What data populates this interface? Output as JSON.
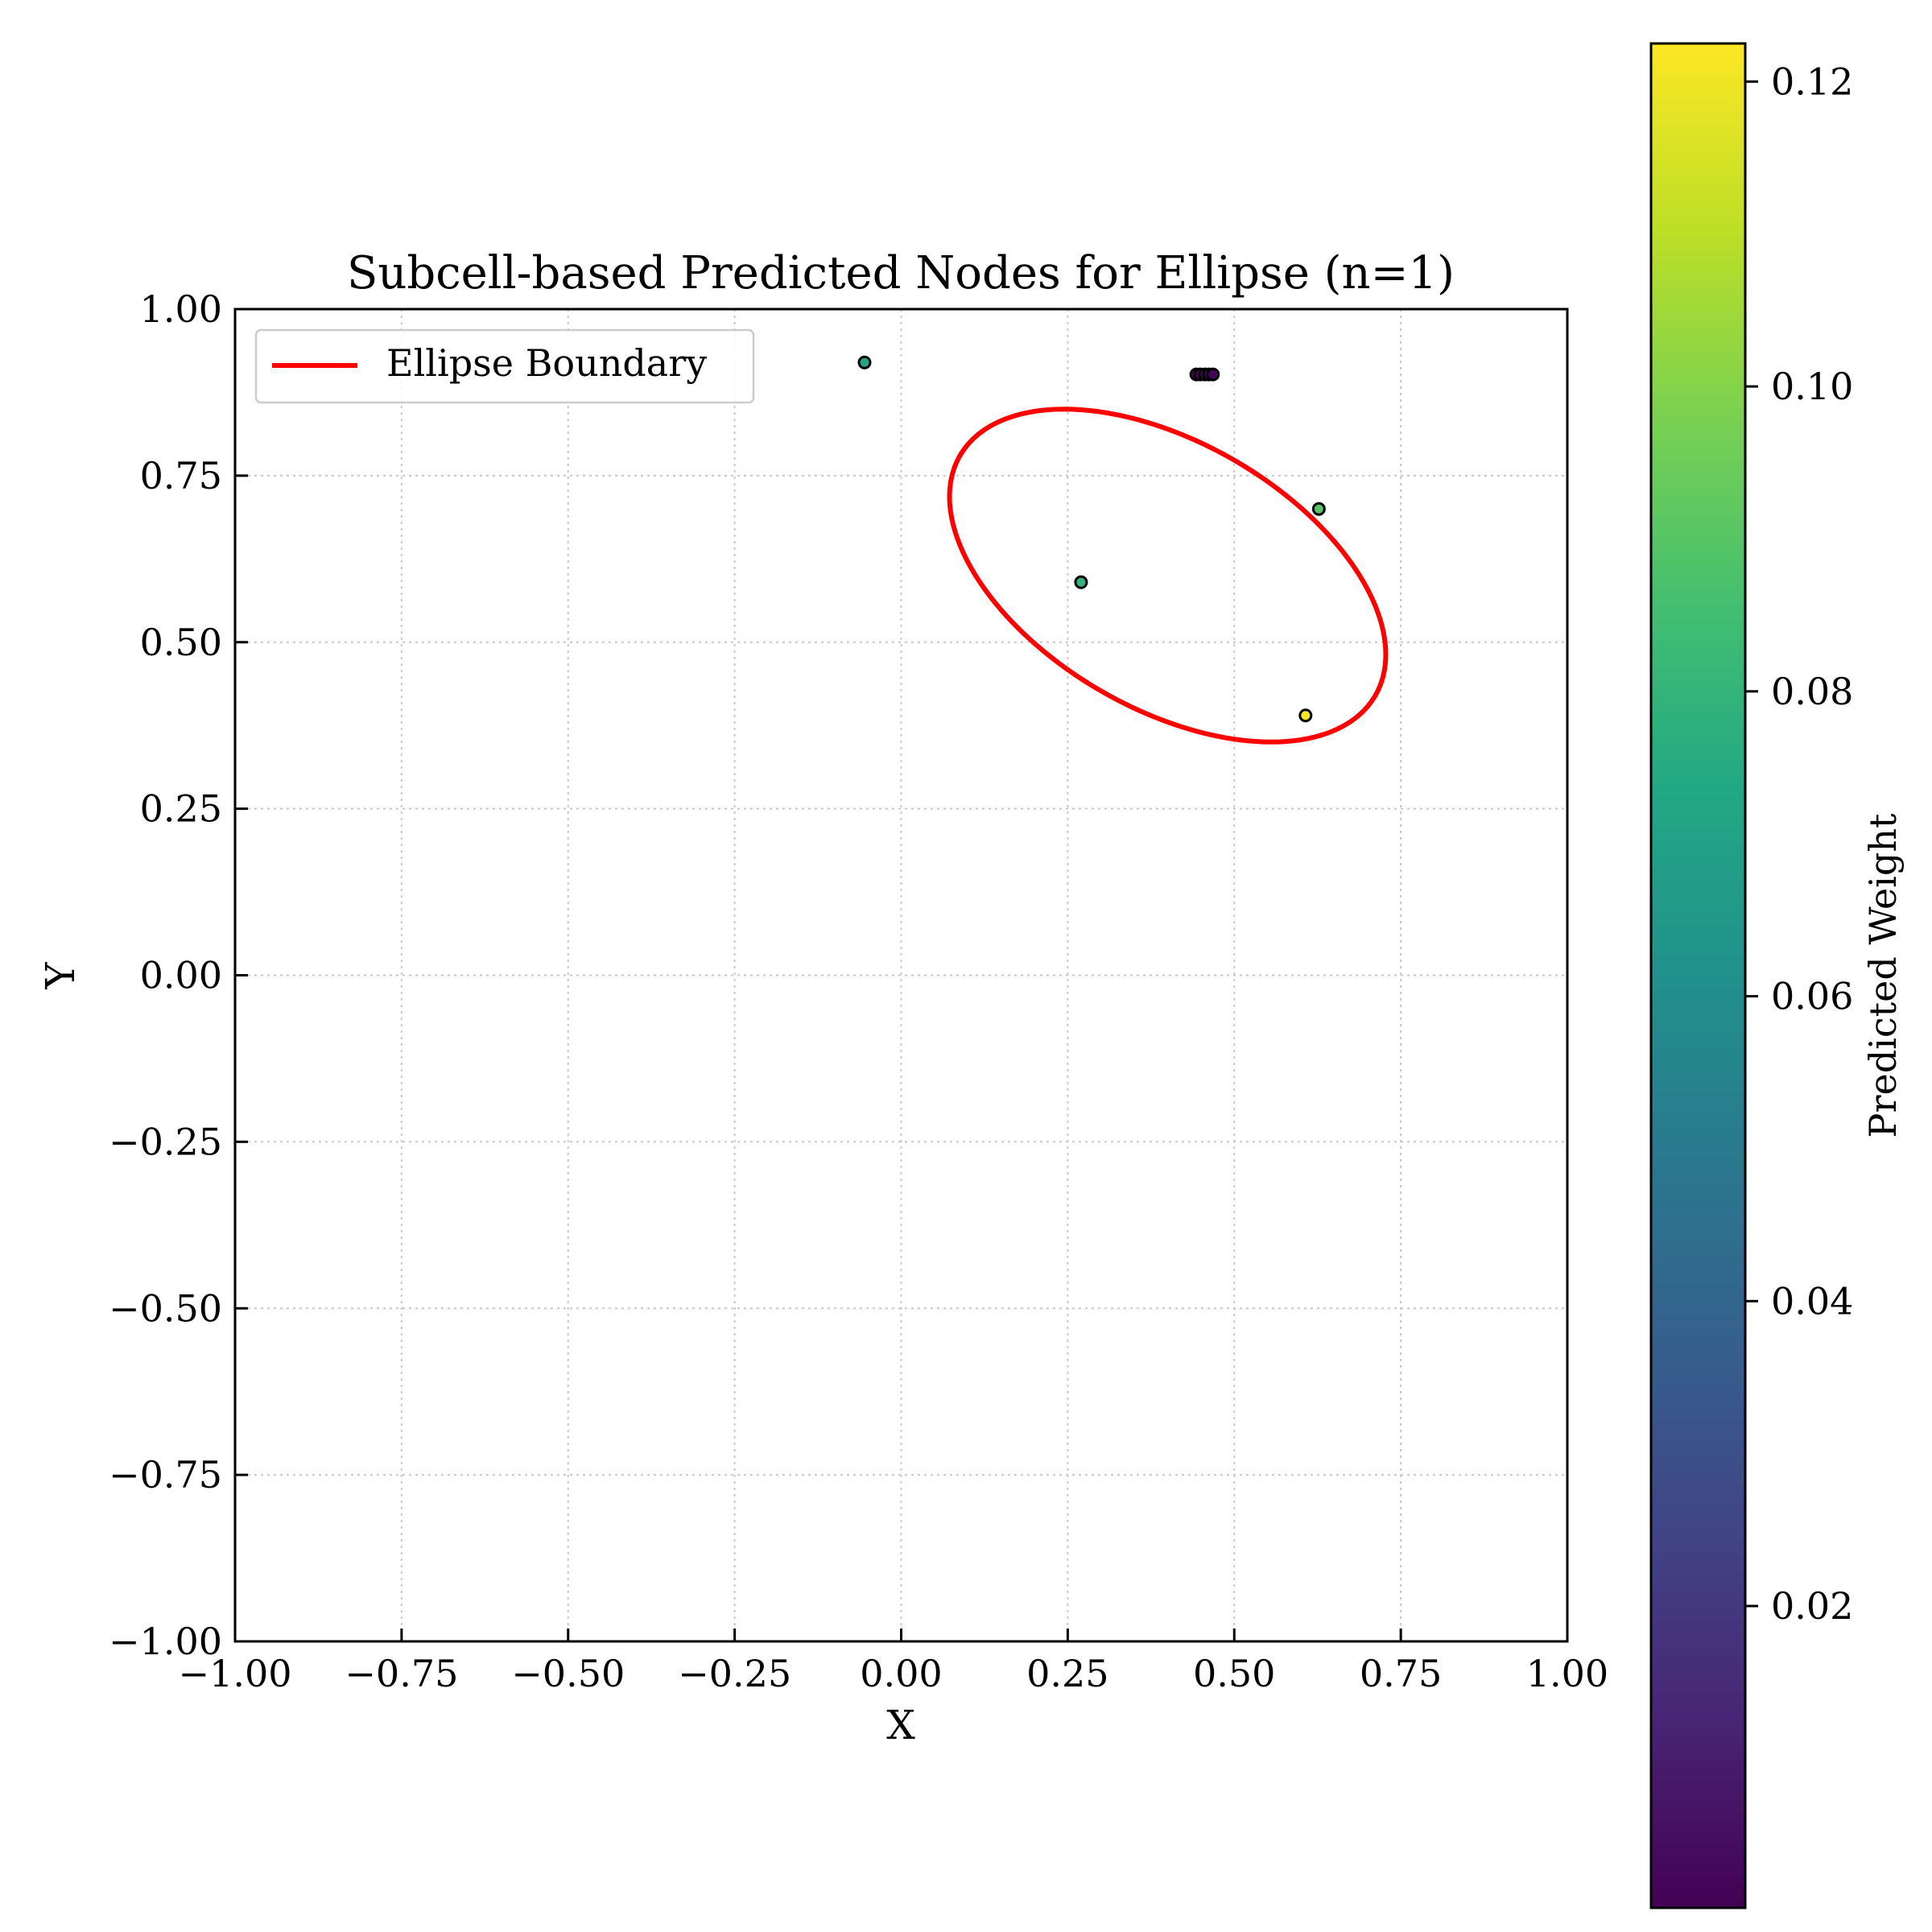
{
  "chart_data": {
    "type": "scatter",
    "title": "Subcell-based Predicted Nodes for Ellipse (n=1)",
    "xlabel": "X",
    "ylabel": "Y",
    "xlim": [
      -1.0,
      1.0
    ],
    "ylim": [
      -1.0,
      1.0
    ],
    "xticks": [
      "−1.00",
      "−0.75",
      "−0.50",
      "−0.25",
      "0.00",
      "0.25",
      "0.50",
      "0.75",
      "1.00"
    ],
    "yticks": [
      "−1.00",
      "−0.75",
      "−0.50",
      "−0.25",
      "0.00",
      "0.25",
      "0.50",
      "0.75",
      "1.00"
    ],
    "grid": true,
    "legend": {
      "placement": "top-left",
      "entries": [
        {
          "label": "Ellipse Boundary",
          "color": "#ff0000"
        }
      ]
    },
    "ellipse": {
      "name": "Ellipse Boundary",
      "color": "#ff0000",
      "center": [
        0.4,
        0.6
      ],
      "semi_major": 0.36,
      "semi_minor": 0.2,
      "angle_deg": -30
    },
    "points": [
      {
        "x": -0.055,
        "y": 0.92,
        "w": 0.072
      },
      {
        "x": 0.443,
        "y": 0.902,
        "w": 0.002
      },
      {
        "x": 0.449,
        "y": 0.902,
        "w": 0.002
      },
      {
        "x": 0.456,
        "y": 0.902,
        "w": 0.004
      },
      {
        "x": 0.462,
        "y": 0.902,
        "w": 0.002
      },
      {
        "x": 0.468,
        "y": 0.902,
        "w": 0.002
      },
      {
        "x": 0.627,
        "y": 0.7,
        "w": 0.09
      },
      {
        "x": 0.27,
        "y": 0.59,
        "w": 0.08
      },
      {
        "x": 0.607,
        "y": 0.39,
        "w": 0.122
      }
    ],
    "colorbar": {
      "label": "Predicted Weight",
      "colormap": "viridis",
      "range": [
        0.0002,
        0.1225
      ],
      "ticks": [
        {
          "value": 0.02,
          "label": "0.02"
        },
        {
          "value": 0.04,
          "label": "0.04"
        },
        {
          "value": 0.06,
          "label": "0.06"
        },
        {
          "value": 0.08,
          "label": "0.08"
        },
        {
          "value": 0.1,
          "label": "0.10"
        },
        {
          "value": 0.12,
          "label": "0.12"
        }
      ]
    }
  }
}
